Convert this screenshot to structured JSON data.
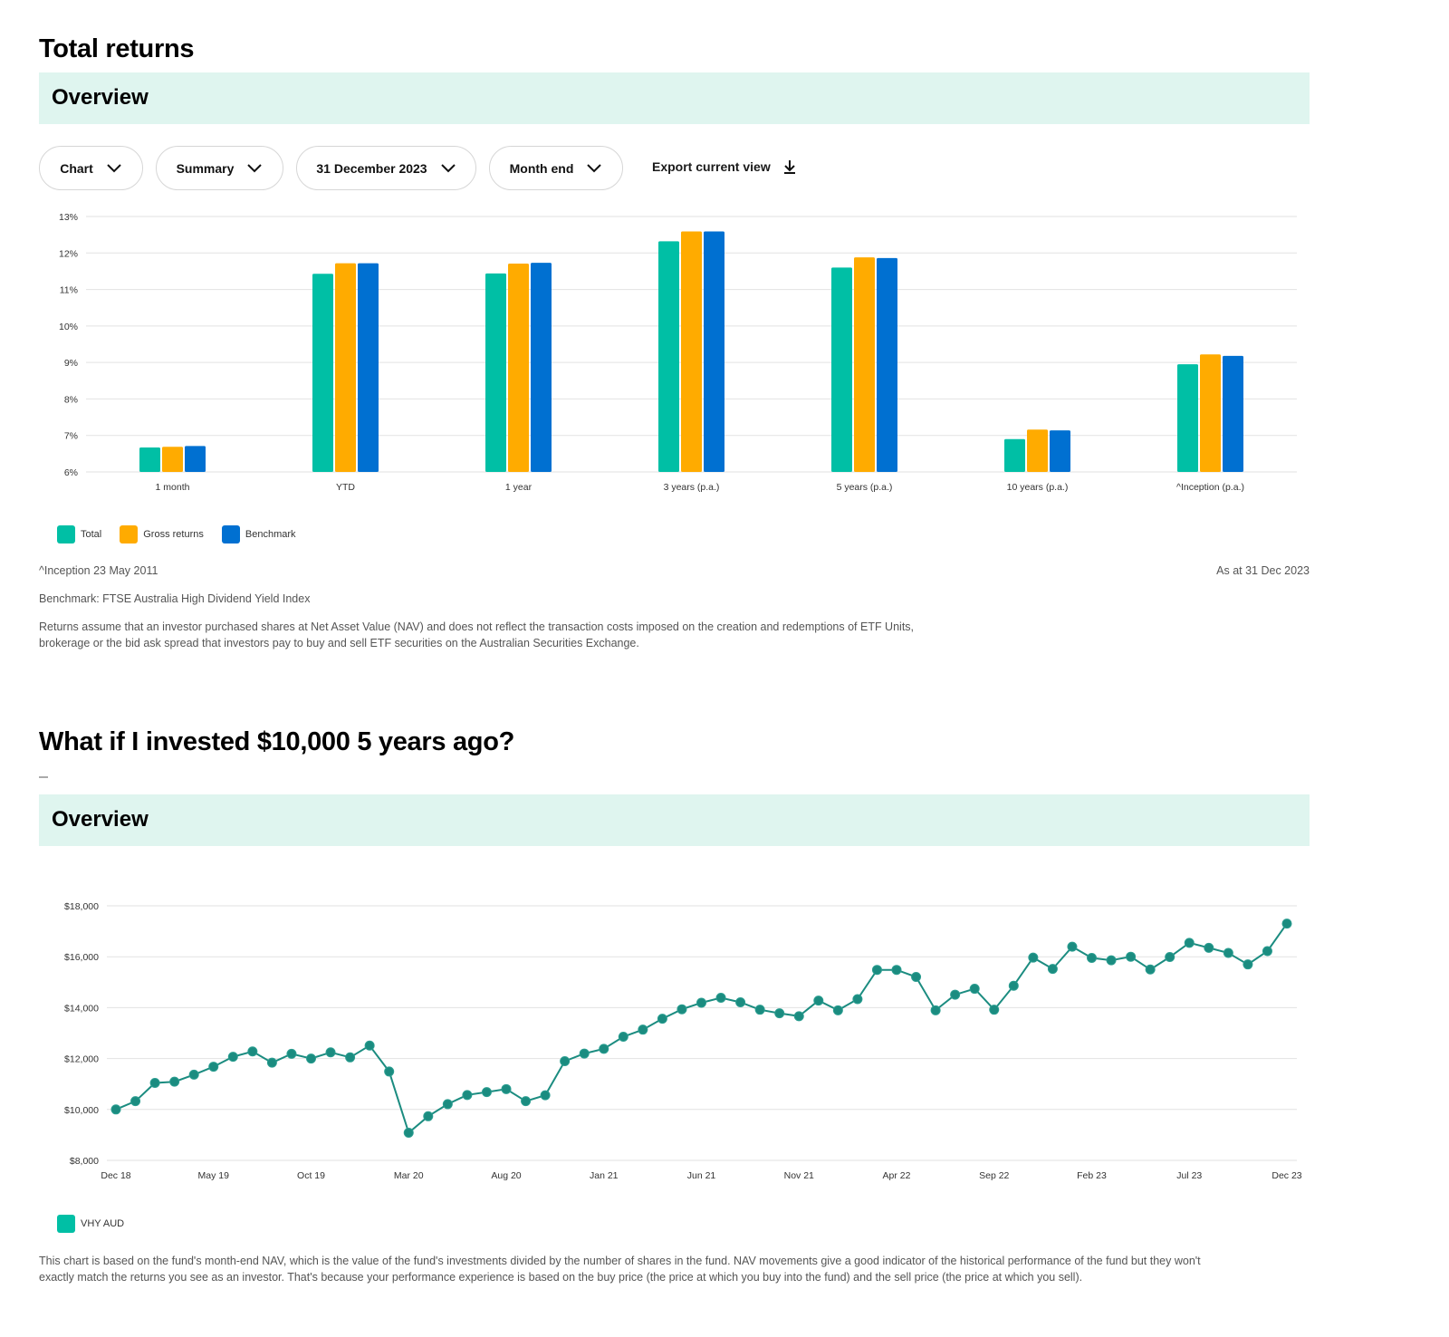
{
  "section1": {
    "title": "Total returns",
    "banner_title": "Overview",
    "controls": {
      "view_select": "Chart",
      "type_select": "Summary",
      "date_select": "31 December 2023",
      "period_select": "Month end",
      "export_label": "Export current view"
    },
    "footnotes": {
      "inception": "^Inception 23 May 2011",
      "as_at": "As at 31 Dec 2023",
      "benchmark": "Benchmark: FTSE Australia High Dividend Yield Index",
      "disclaimer_line1": "Returns assume that an investor purchased shares at Net Asset Value (NAV) and does not reflect the transaction costs imposed on the creation and redemptions of ETF Units,",
      "disclaimer_line2": "brokerage or the bid ask spread that investors pay to buy and sell ETF securities on the Australian Securities Exchange."
    }
  },
  "section2": {
    "title": "What if I invested $10,000 5 years ago?",
    "banner_title": "Overview",
    "disclaimer_line1": "This chart is based on the fund's month-end NAV, which is the value of the fund's investments divided by the number of shares in the fund. NAV movements give a good indicator of the historical performance of the fund but they won't",
    "disclaimer_line2": "exactly match the returns you see as an investor. That's because your performance experience is based on the buy price (the price at which you buy into the fund) and the sell price (the price at which you sell)."
  },
  "icons": {
    "dropdown": "chevron-down-icon",
    "export": "download-icon"
  },
  "chart_data": [
    {
      "type": "bar",
      "title": "",
      "xlabel": "",
      "ylabel": "",
      "ylim": [
        6,
        13
      ],
      "yticks": [
        "6%",
        "7%",
        "8%",
        "9%",
        "10%",
        "11%",
        "12%",
        "13%"
      ],
      "ytick_values": [
        6,
        7,
        8,
        9,
        10,
        11,
        12,
        13
      ],
      "grid": true,
      "legend_position": "bottom-left",
      "categories": [
        "1 month",
        "YTD",
        "1 year",
        "3 years (p.a.)",
        "5 years (p.a.)",
        "10 years (p.a.)",
        "^Inception (p.a.)"
      ],
      "series": [
        {
          "name": "Total",
          "color": "#00bfa5",
          "values": [
            6.67,
            11.43,
            11.44,
            12.32,
            11.6,
            6.9,
            8.95
          ]
        },
        {
          "name": "Gross returns",
          "color": "#ffab00",
          "values": [
            6.69,
            11.72,
            11.71,
            12.59,
            11.88,
            7.16,
            9.22
          ]
        },
        {
          "name": "Benchmark",
          "color": "#0070d1",
          "values": [
            6.71,
            11.72,
            11.73,
            12.59,
            11.86,
            7.14,
            9.18
          ]
        }
      ]
    },
    {
      "type": "line",
      "title": "",
      "xlabel": "",
      "ylabel": "",
      "ylim": [
        8000,
        18000
      ],
      "yticks": [
        "$8,000",
        "$10,000",
        "$12,000",
        "$14,000",
        "$16,000",
        "$18,000"
      ],
      "ytick_values": [
        8000,
        10000,
        12000,
        14000,
        16000,
        18000
      ],
      "xticks": [
        "Dec 18",
        "May 19",
        "Oct 19",
        "Mar 20",
        "Aug 20",
        "Jan 21",
        "Jun 21",
        "Nov 21",
        "Apr 22",
        "Sep 22",
        "Feb 23",
        "Jul 23",
        "Dec 23"
      ],
      "xtick_every": 5,
      "grid": true,
      "legend_position": "bottom-left",
      "series": [
        {
          "name": "VHY AUD",
          "color": "#1b8c80",
          "legend_color": "#00bfa5",
          "values": [
            10000,
            10325,
            11043,
            11090,
            11368,
            11681,
            12070,
            12278,
            11838,
            12186,
            12000,
            12243,
            12046,
            12510,
            11490,
            9084,
            9733,
            10209,
            10568,
            10684,
            10800,
            10325,
            10557,
            11896,
            12197,
            12383,
            12858,
            13136,
            13565,
            13936,
            14191,
            14388,
            14210,
            13919,
            13780,
            13664,
            14278,
            13896,
            14336,
            15484,
            15484,
            15206,
            13896,
            14510,
            14742,
            13919,
            14860,
            15965,
            15523,
            16395,
            15953,
            15860,
            16000,
            15500,
            15988,
            16547,
            16349,
            16151,
            15698,
            16221,
            17302
          ]
        }
      ]
    }
  ]
}
